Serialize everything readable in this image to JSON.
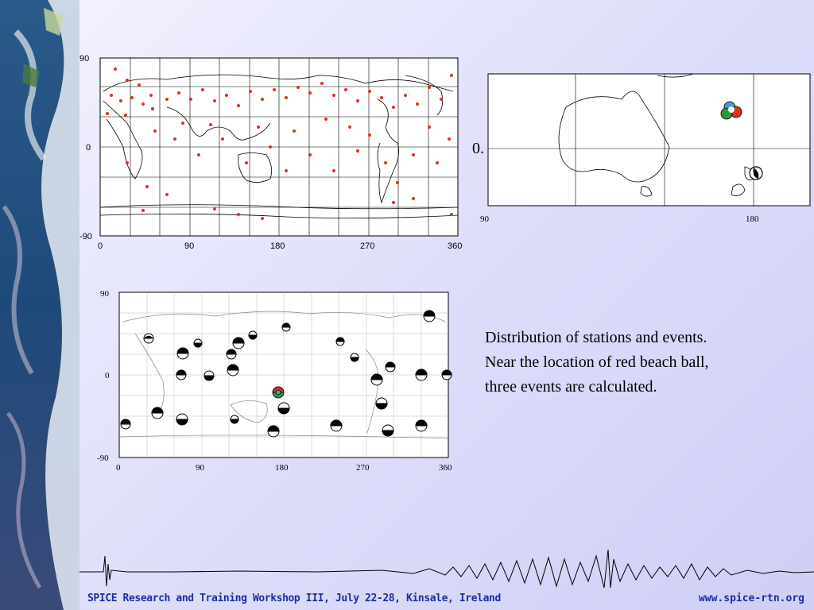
{
  "stations_map": {
    "y_ticks": [
      "90",
      "0",
      "-90"
    ],
    "x_ticks": [
      "0",
      "90",
      "180",
      "270",
      "360"
    ]
  },
  "zoom_map": {
    "x_ticks": [
      "90",
      "180"
    ],
    "y_label": "0."
  },
  "events_map": {
    "y_ticks": [
      "90",
      "0",
      "-90"
    ],
    "x_ticks": [
      "0",
      "90",
      "180",
      "270",
      "360"
    ]
  },
  "caption": {
    "line1": "Distribution of stations and events.",
    "line2": "Near the location of red beach ball,",
    "line3": "three events are calculated."
  },
  "footer": {
    "left": "SPICE Research and Training Workshop III, July 22-28, Kinsale, Ireland",
    "right": "www.spice-rtn.org"
  }
}
